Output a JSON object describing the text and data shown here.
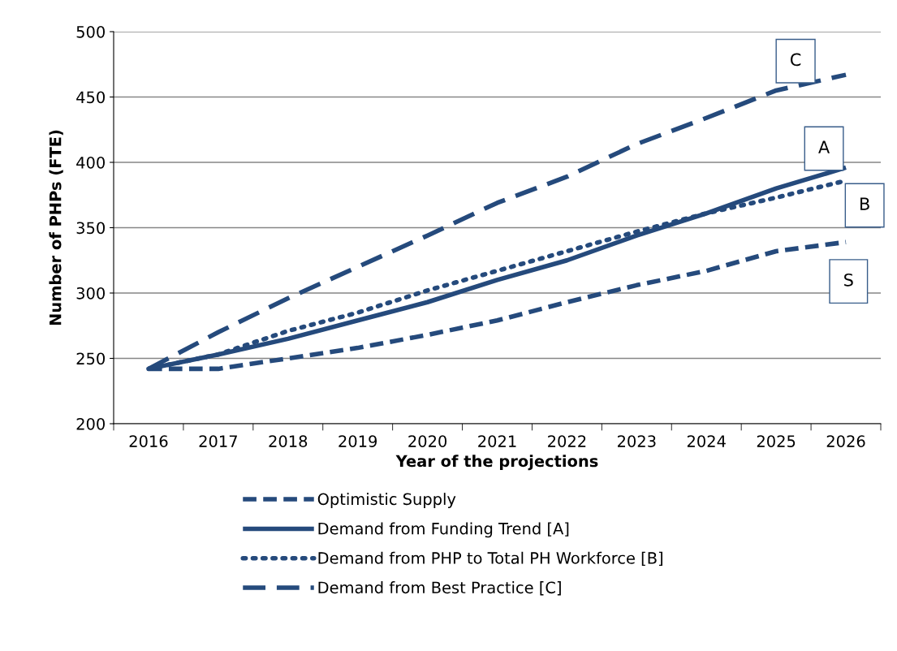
{
  "chart_data": {
    "type": "line",
    "xlabel": "Year of the projections",
    "ylabel": "Number of PHPs (FTE)",
    "categories": [
      "2016",
      "2017",
      "2018",
      "2019",
      "2020",
      "2021",
      "2022",
      "2023",
      "2024",
      "2025",
      "2026"
    ],
    "series": [
      {
        "name": "Optimistic Supply",
        "color": "#254a7c",
        "line_style": "dashed",
        "values": [
          242,
          242,
          250,
          258,
          268,
          279,
          293,
          306,
          317,
          332,
          339
        ]
      },
      {
        "name": "Demand from Funding Trend [A]",
        "color": "#254a7c",
        "line_style": "solid",
        "values": [
          242,
          253,
          265,
          279,
          293,
          310,
          325,
          344,
          361,
          380,
          396
        ]
      },
      {
        "name": "Demand from PHP to Total PH Workforce [B]",
        "color": "#254a7c",
        "line_style": "dotted",
        "values": [
          242,
          253,
          271,
          285,
          302,
          317,
          332,
          347,
          361,
          373,
          386
        ]
      },
      {
        "name": "Demand from Best Practice [C]",
        "color": "#254a7c",
        "line_style": "dashed",
        "values": [
          242,
          270,
          296,
          320,
          344,
          369,
          389,
          414,
          434,
          455,
          467
        ]
      }
    ],
    "annotations": [
      "C",
      "A",
      "B",
      "S"
    ],
    "ylim": [
      200,
      500
    ],
    "yticks": [
      200,
      250,
      300,
      350,
      400,
      450,
      500
    ],
    "grid": "y",
    "legend": "bottom",
    "marker": "none"
  }
}
